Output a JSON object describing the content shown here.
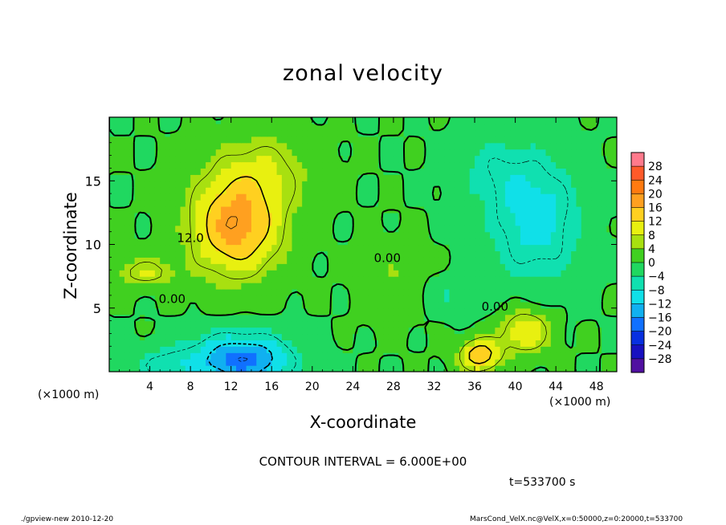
{
  "chart_data": {
    "type": "heatmap",
    "title": "zonal velocity",
    "xlabel": "X-coordinate",
    "ylabel": "Z-coordinate",
    "x_unit": "(×1000 m)",
    "y_unit": "(×1000 m)",
    "xlim": [
      0,
      50
    ],
    "ylim": [
      0,
      20
    ],
    "x_ticks": [
      4,
      8,
      12,
      16,
      20,
      24,
      28,
      32,
      36,
      40,
      44,
      48
    ],
    "y_ticks": [
      5,
      10,
      15
    ],
    "contour_interval_text": "CONTOUR INTERVAL = 6.000E+00",
    "time_text": "t=533700 s",
    "footer_left": "./gpview-new  2010-12-20",
    "footer_right": "MarsCond_VelX.nc@VelX,x=0:50000,z=0:20000,t=533700",
    "contour_labels": [
      {
        "text": "12.0",
        "x": 8.0,
        "z": 10.2
      },
      {
        "text": "0.00",
        "x": 6.2,
        "z": 5.4
      },
      {
        "text": "0.00",
        "x": 27.4,
        "z": 8.6
      },
      {
        "text": "0.00",
        "x": 38.0,
        "z": 4.8
      }
    ],
    "features": [
      {
        "x": 12.5,
        "z": 11.5,
        "value": 18,
        "sx": 4.5,
        "sz": 4.0
      },
      {
        "x": 15.5,
        "z": 16.0,
        "value": 6,
        "sx": 5.0,
        "sz": 3.0
      },
      {
        "x": 13.0,
        "z": 1.0,
        "value": -18,
        "sx": 5.0,
        "sz": 2.0
      },
      {
        "x": 5.0,
        "z": 0.5,
        "value": -6,
        "sx": 3.0,
        "sz": 1.5
      },
      {
        "x": 42.0,
        "z": 12.0,
        "value": -10,
        "sx": 4.5,
        "sz": 5.0
      },
      {
        "x": 37.5,
        "z": 16.0,
        "value": -4,
        "sx": 4.0,
        "sz": 3.0
      },
      {
        "x": 36.5,
        "z": 1.3,
        "value": 16,
        "sx": 2.0,
        "sz": 1.3
      },
      {
        "x": 41.0,
        "z": 3.2,
        "value": 12,
        "sx": 2.5,
        "sz": 1.8
      },
      {
        "x": 34.0,
        "z": 6.0,
        "value": -4,
        "sx": 3.5,
        "sz": 1.5
      },
      {
        "x": 28.0,
        "z": 7.0,
        "value": 4,
        "sx": 3.0,
        "sz": 3.0
      },
      {
        "x": 3.5,
        "z": 7.8,
        "value": 8,
        "sx": 3.0,
        "sz": 1.2
      }
    ],
    "colorbar": {
      "labels": [
        "28",
        "24",
        "20",
        "16",
        "12",
        "8",
        "4",
        "0",
        "−4",
        "−8",
        "−12",
        "−16",
        "−20",
        "−24",
        "−28"
      ],
      "values": [
        28,
        24,
        20,
        16,
        12,
        8,
        4,
        0,
        -4,
        -8,
        -12,
        -16,
        -20,
        -24,
        -28
      ],
      "colors": [
        "#ff7a8c",
        "#ff5a2a",
        "#ff7a10",
        "#ffa020",
        "#ffd020",
        "#e8f010",
        "#a8e010",
        "#40d020",
        "#20d860",
        "#10e0b0",
        "#10e0e8",
        "#10b0f0",
        "#1070ff",
        "#0830e0",
        "#1810c0",
        "#5010a0"
      ]
    }
  }
}
